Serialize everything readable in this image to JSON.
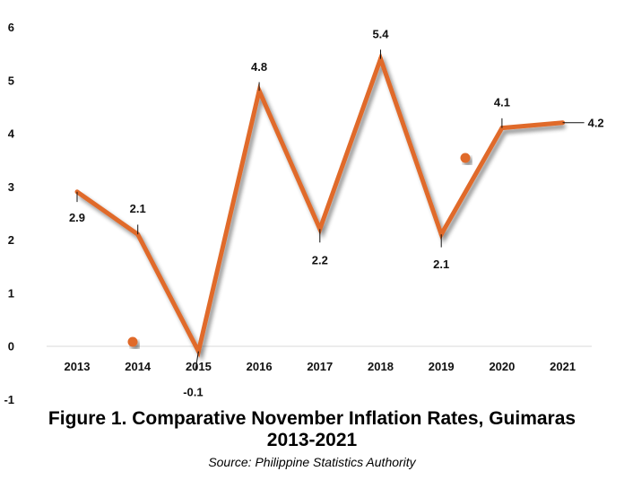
{
  "caption": {
    "title_line1": "Figure 1. Comparative November Inflation Rates, Guimaras",
    "title_line2": "2013-2021",
    "source": "Source: Philippine Statistics Authority"
  },
  "chart_data": {
    "type": "line",
    "categories": [
      "2013",
      "2014",
      "2015",
      "2016",
      "2017",
      "2018",
      "2019",
      "2020",
      "2021"
    ],
    "values": [
      2.9,
      2.1,
      -0.1,
      4.8,
      2.2,
      5.4,
      2.1,
      4.1,
      4.2
    ],
    "data_labels": [
      "2.9",
      "2.1",
      "-0.1",
      "4.8",
      "2.2",
      "5.4",
      "2.1",
      "4.1",
      "4.2"
    ],
    "y_ticks": [
      "-1",
      "0",
      "1",
      "2",
      "3",
      "4",
      "5",
      "6"
    ],
    "ylim": [
      -1,
      6
    ],
    "line_color": "#e06a2b",
    "grid": false,
    "legend": false
  }
}
